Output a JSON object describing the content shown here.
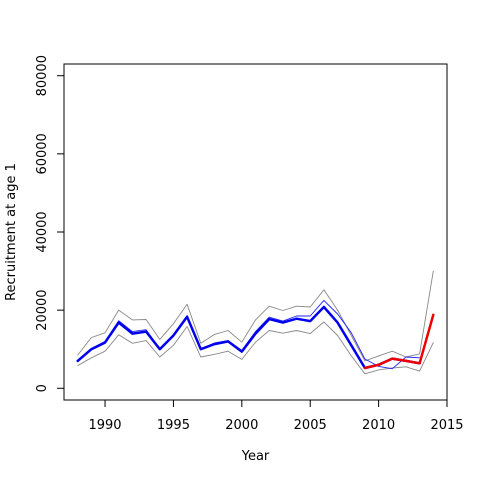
{
  "chart_data": {
    "type": "line",
    "title": "",
    "xlabel": "Year",
    "ylabel": "Recruitment at age 1",
    "xlim": [
      1987,
      2015
    ],
    "ylim": [
      -3000,
      83000
    ],
    "x_ticks": [
      1990,
      1995,
      2000,
      2005,
      2010,
      2015
    ],
    "y_ticks": [
      0,
      20000,
      40000,
      60000,
      80000
    ],
    "grid": false,
    "legend": "none",
    "series": [
      {
        "color": "#888888",
        "style": "thin",
        "x": [
          1988,
          1989,
          1990,
          1991,
          1992,
          1993,
          1994,
          1995,
          1996,
          1997,
          1998,
          1999,
          2000,
          2001,
          2002,
          2003,
          2004,
          2005,
          2006,
          2007,
          2008,
          2009,
          2010,
          2011,
          2012,
          2013,
          2014
        ],
        "y": [
          8500,
          13000,
          14200,
          20000,
          17500,
          17600,
          12500,
          16500,
          21500,
          11500,
          13800,
          14800,
          11800,
          17500,
          21000,
          19900,
          21000,
          20800,
          25200,
          20000,
          13500,
          7000,
          8300,
          9500,
          8000,
          8800,
          30000
        ]
      },
      {
        "color": "#888888",
        "style": "thin",
        "x": [
          1988,
          1989,
          1990,
          1991,
          1992,
          1993,
          1994,
          1995,
          1996,
          1997,
          1998,
          1999,
          2000,
          2001,
          2002,
          2003,
          2004,
          2005,
          2006,
          2007,
          2008,
          2009,
          2010,
          2011,
          2012,
          2013,
          2014
        ],
        "y": [
          5800,
          7800,
          9500,
          13700,
          11500,
          12200,
          8000,
          11000,
          15800,
          8000,
          8700,
          9500,
          7400,
          11800,
          14800,
          14100,
          14800,
          14000,
          17000,
          13500,
          8300,
          3700,
          4700,
          5200,
          5500,
          4400,
          11700
        ]
      },
      {
        "color": "#2222ff",
        "style": "thin",
        "x": [
          1988,
          1989,
          1990,
          1991,
          1992,
          1993,
          1994,
          1995,
          1996,
          1997,
          1998,
          1999,
          2000,
          2001,
          2002,
          2003,
          2004,
          2005,
          2006,
          2007,
          2008,
          2009,
          2010,
          2011,
          2012,
          2013
        ],
        "y": [
          7200,
          10200,
          12000,
          17300,
          14500,
          15000,
          10100,
          13700,
          18600,
          10100,
          11600,
          12200,
          9700,
          14500,
          18200,
          17200,
          18500,
          18500,
          22500,
          19000,
          14200,
          7500,
          5600,
          5000,
          8000,
          7800
        ]
      },
      {
        "color": "#0000ee",
        "style": "thick",
        "x": [
          1988,
          1989,
          1990,
          1991,
          1992,
          1993,
          1994,
          1995,
          1996,
          1997,
          1998,
          1999,
          2000,
          2001,
          2002,
          2003,
          2004,
          2005,
          2006,
          2007,
          2008,
          2009,
          2010,
          2011,
          2012,
          2013
        ],
        "y": [
          7000,
          10000,
          11700,
          16800,
          14000,
          14500,
          10000,
          13500,
          18300,
          10000,
          11300,
          12000,
          9400,
          14000,
          17700,
          16800,
          17800,
          17200,
          20800,
          16800,
          11000,
          5200,
          6000,
          7600,
          7000,
          6400
        ]
      },
      {
        "color": "#ee0000",
        "style": "thick",
        "x": [
          2009,
          2010,
          2011,
          2012,
          2013,
          2014
        ],
        "y": [
          5200,
          6000,
          7600,
          7000,
          6400,
          18800
        ]
      }
    ]
  }
}
